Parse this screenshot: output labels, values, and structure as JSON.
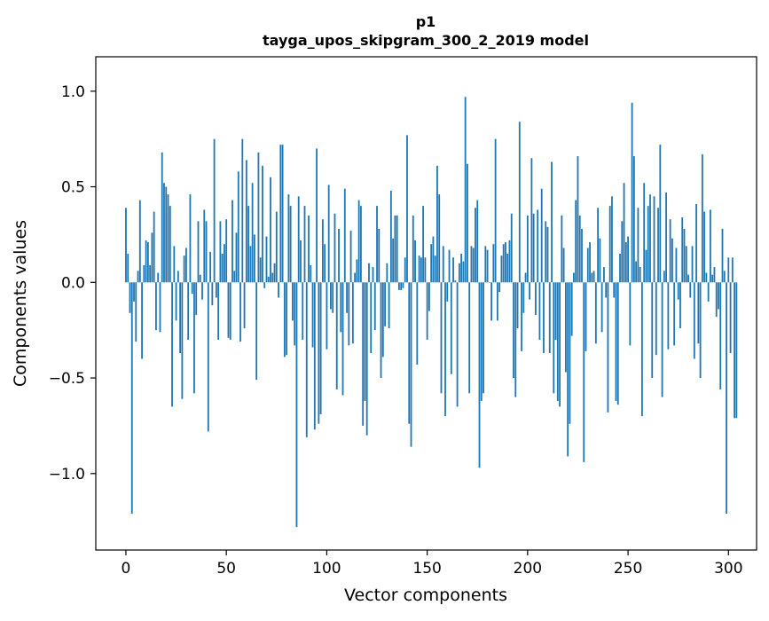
{
  "chart_data": {
    "type": "bar",
    "title": "p1",
    "subtitle": "tayga_upos_skipgram_300_2_2019 model",
    "xlabel": "Vector components",
    "ylabel": "Components values",
    "xlim": [
      -15,
      314
    ],
    "ylim": [
      -1.4,
      1.18
    ],
    "grid": false,
    "x_ticks": [
      {
        "value": 0,
        "label": "0"
      },
      {
        "value": 50,
        "label": "50"
      },
      {
        "value": 100,
        "label": "100"
      },
      {
        "value": 150,
        "label": "150"
      },
      {
        "value": 200,
        "label": "200"
      },
      {
        "value": 250,
        "label": "250"
      },
      {
        "value": 300,
        "label": "300"
      }
    ],
    "y_ticks": [
      {
        "value": 1.0,
        "label": "1.0"
      },
      {
        "value": 0.5,
        "label": "0.5"
      },
      {
        "value": 0.0,
        "label": "0.0"
      },
      {
        "value": -0.5,
        "label": "−0.5"
      },
      {
        "value": -1.0,
        "label": "−1.0"
      }
    ],
    "bar_color": "#1f77b4",
    "values": [
      0.39,
      0.15,
      -0.16,
      -1.21,
      -0.1,
      -0.31,
      0.06,
      0.43,
      -0.4,
      0.09,
      0.22,
      0.21,
      0.09,
      0.26,
      0.37,
      -0.25,
      0.05,
      -0.26,
      0.68,
      0.52,
      0.5,
      0.46,
      0.4,
      -0.65,
      0.19,
      -0.2,
      0.06,
      -0.37,
      -0.61,
      0.14,
      0.18,
      -0.3,
      0.46,
      -0.06,
      -0.58,
      -0.17,
      0.32,
      0.04,
      -0.09,
      0.38,
      0.32,
      -0.78,
      0.16,
      -0.12,
      0.75,
      -0.08,
      -0.3,
      0.32,
      0.15,
      0.2,
      0.33,
      -0.29,
      -0.3,
      0.43,
      0.06,
      0.26,
      0.58,
      -0.31,
      0.75,
      -0.24,
      0.64,
      0.4,
      0.19,
      0.52,
      0.25,
      -0.51,
      0.68,
      0.13,
      0.61,
      -0.03,
      0.24,
      0.03,
      0.55,
      0.05,
      0.1,
      0.37,
      -0.08,
      0.72,
      0.72,
      -0.39,
      -0.38,
      0.46,
      0.4,
      -0.2,
      -0.33,
      -1.28,
      0.45,
      0.22,
      -0.3,
      0.4,
      -0.81,
      0.35,
      0.09,
      -0.34,
      -0.77,
      0.7,
      -0.74,
      -0.69,
      0.33,
      0.2,
      -0.35,
      0.51,
      -0.14,
      -0.16,
      0.36,
      -0.56,
      0.28,
      -0.26,
      -0.59,
      0.49,
      -0.16,
      -0.33,
      0.27,
      -0.32,
      0.05,
      0.12,
      0.43,
      0.4,
      -0.75,
      -0.62,
      -0.8,
      0.1,
      -0.37,
      0.08,
      -0.25,
      0.4,
      0.28,
      -0.5,
      -0.39,
      -0.23,
      0.1,
      -0.24,
      0.48,
      0.23,
      0.35,
      0.35,
      -0.04,
      -0.04,
      -0.03,
      0.13,
      0.77,
      -0.74,
      -0.86,
      0.35,
      0.22,
      -0.43,
      0.14,
      0.13,
      0.4,
      0.13,
      -0.3,
      -0.15,
      0.2,
      0.24,
      0.14,
      0.61,
      0.46,
      -0.58,
      0.19,
      -0.7,
      -0.1,
      0.17,
      -0.48,
      0.13,
      0.01,
      -0.65,
      0.1,
      0.15,
      0.11,
      0.97,
      0.62,
      -0.58,
      0.19,
      0.18,
      0.39,
      0.43,
      -0.97,
      -0.62,
      -0.58,
      0.19,
      0.17,
      0.0,
      -0.2,
      0.2,
      0.75,
      -0.2,
      -0.05,
      0.14,
      0.2,
      0.21,
      0.15,
      0.22,
      0.36,
      -0.5,
      -0.6,
      -0.24,
      0.84,
      -0.36,
      -0.16,
      0.05,
      0.35,
      -0.09,
      0.65,
      0.36,
      -0.17,
      0.38,
      -0.3,
      0.49,
      -0.37,
      0.32,
      0.29,
      -0.37,
      0.63,
      -0.58,
      -0.3,
      -0.62,
      -0.65,
      0.35,
      0.18,
      -0.47,
      -0.91,
      -0.74,
      -0.28,
      0.05,
      0.43,
      0.66,
      0.35,
      0.28,
      -0.94,
      -0.36,
      0.18,
      0.21,
      0.05,
      0.06,
      -0.32,
      0.39,
      0.23,
      -0.26,
      0.08,
      -0.08,
      -0.68,
      0.4,
      0.45,
      -0.08,
      -0.62,
      -0.64,
      0.15,
      0.32,
      0.52,
      0.21,
      0.24,
      -0.33,
      0.94,
      0.66,
      0.11,
      0.39,
      0.08,
      -0.7,
      0.52,
      0.17,
      0.4,
      0.46,
      -0.5,
      0.45,
      -0.38,
      0.39,
      0.72,
      -0.6,
      0.06,
      0.47,
      -0.35,
      0.33,
      0.23,
      -0.33,
      0.18,
      -0.09,
      -0.24,
      0.34,
      0.28,
      0.19,
      0.04,
      -0.08,
      0.19,
      -0.4,
      0.41,
      -0.32,
      -0.5,
      0.67,
      0.37,
      0.05,
      -0.1,
      0.38,
      0.04,
      0.08,
      -0.18,
      -0.14,
      -0.56,
      0.28,
      0.06,
      -1.21,
      0.13,
      -0.37,
      0.13,
      -0.71,
      -0.71
    ]
  }
}
